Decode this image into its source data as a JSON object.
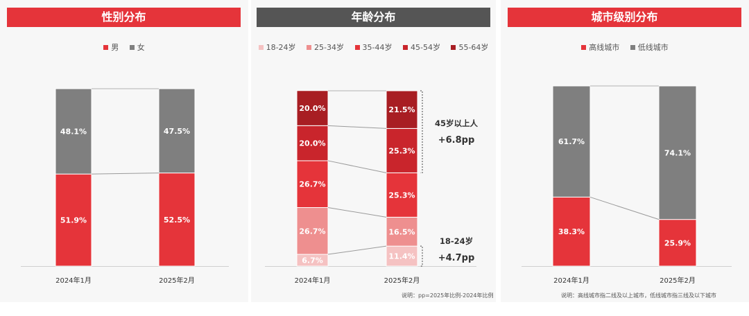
{
  "colors": {
    "red": "#e5343a",
    "gray": "#7f7f7f",
    "title_red": "#e5343a",
    "title_gray": "#555555",
    "age": [
      "#f5c2c2",
      "#ee8f8f",
      "#e5343a",
      "#c9252c",
      "#a81e23"
    ]
  },
  "panels": [
    {
      "title": "性别分布",
      "legend": [
        "男",
        "女"
      ],
      "note": "",
      "chart_data": {
        "type": "bar",
        "stacked": true,
        "categories": [
          "2024年1月",
          "2025年2月"
        ],
        "series": [
          {
            "name": "男",
            "values": [
              51.9,
              52.5
            ]
          },
          {
            "name": "女",
            "values": [
              48.1,
              47.5
            ]
          }
        ],
        "labels": [
          [
            "51.9%",
            "52.5%"
          ],
          [
            "48.1%",
            "47.5%"
          ]
        ],
        "ylim": [
          0,
          100
        ]
      }
    },
    {
      "title": "年龄分布",
      "legend": [
        "18-24岁",
        "25-34岁",
        "35-44岁",
        "45-54岁",
        "55-64岁"
      ],
      "note": "说明：pp=2025年比例-2024年比例",
      "annotations": [
        {
          "label": "45岁以上人",
          "value": "+6.8pp"
        },
        {
          "label": "18-24岁",
          "value": "+4.7pp"
        }
      ],
      "chart_data": {
        "type": "bar",
        "stacked": true,
        "categories": [
          "2024年1月",
          "2025年2月"
        ],
        "series": [
          {
            "name": "18-24岁",
            "values": [
              6.7,
              11.4
            ]
          },
          {
            "name": "25-34岁",
            "values": [
              26.7,
              16.5
            ]
          },
          {
            "name": "35-44岁",
            "values": [
              26.7,
              25.3
            ]
          },
          {
            "name": "45-54岁",
            "values": [
              20.0,
              25.3
            ]
          },
          {
            "name": "55-64岁",
            "values": [
              20.0,
              21.5
            ]
          }
        ],
        "labels": [
          [
            "6.7%",
            "11.4%"
          ],
          [
            "26.7%",
            "16.5%"
          ],
          [
            "26.7%",
            "25.3%"
          ],
          [
            "20.0%",
            "25.3%"
          ],
          [
            "20.0%",
            "21.5%"
          ]
        ],
        "ylim": [
          0,
          100
        ]
      }
    },
    {
      "title": "城市级别分布",
      "legend": [
        "高线城市",
        "低线城市"
      ],
      "note": "说明：高线城市指二线及以上城市，低线城市指三线及以下城市",
      "chart_data": {
        "type": "bar",
        "stacked": true,
        "categories": [
          "2024年1月",
          "2025年2月"
        ],
        "series": [
          {
            "name": "高线城市",
            "values": [
              38.3,
              25.9
            ]
          },
          {
            "name": "低线城市",
            "values": [
              61.7,
              74.1
            ]
          }
        ],
        "labels": [
          [
            "38.3%",
            "25.9%"
          ],
          [
            "61.7%",
            "74.1%"
          ]
        ],
        "ylim": [
          0,
          100
        ]
      }
    }
  ]
}
